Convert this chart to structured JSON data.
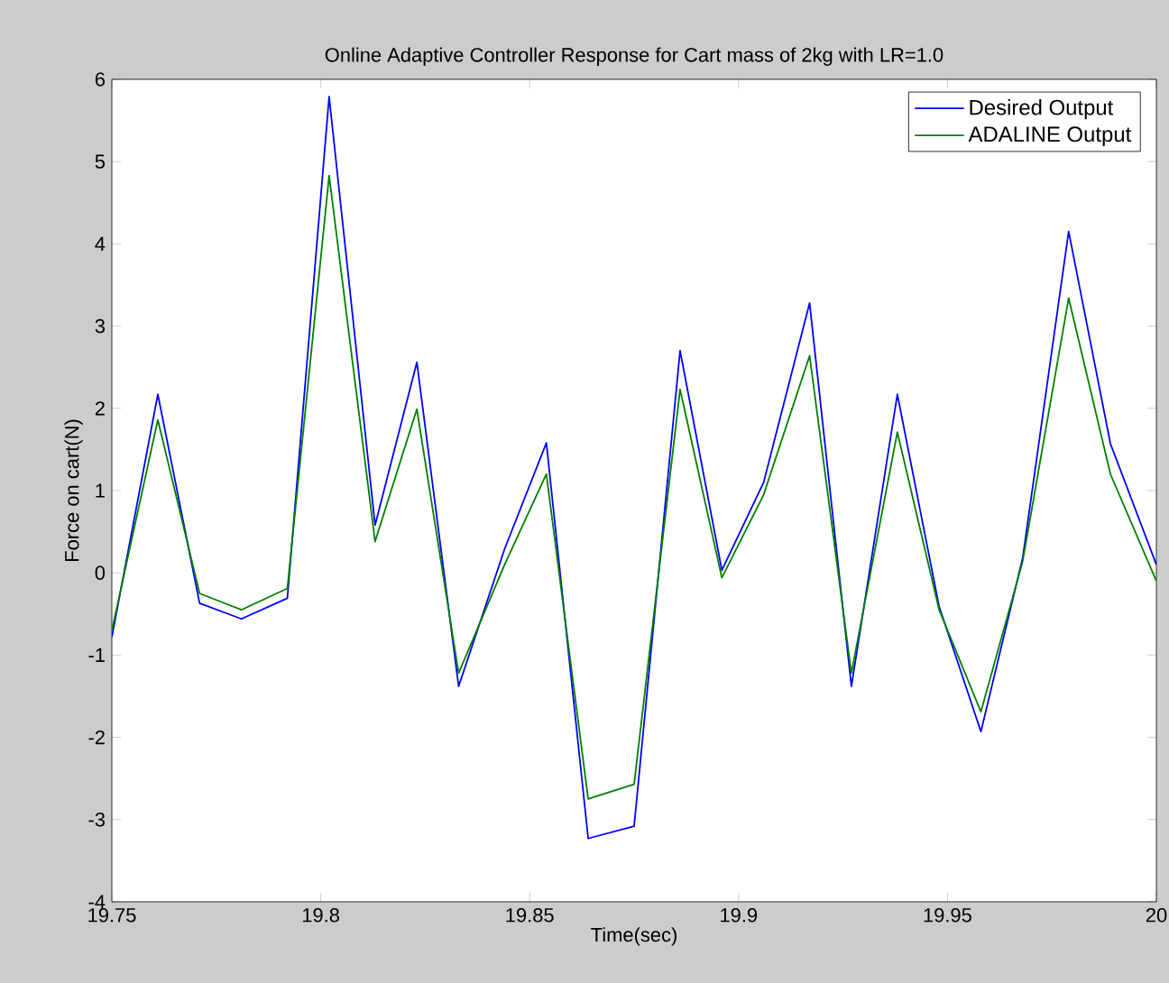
{
  "chart_data": {
    "type": "line",
    "title": "Online Adaptive Controller Response for Cart mass of 2kg with LR=1.0",
    "xlabel": "Time(sec)",
    "ylabel": "Force on cart(N)",
    "x": [
      19.75,
      19.761,
      19.771,
      19.781,
      19.792,
      19.802,
      19.813,
      19.823,
      19.833,
      19.844,
      19.854,
      19.864,
      19.875,
      19.886,
      19.896,
      19.906,
      19.917,
      19.927,
      19.938,
      19.948,
      19.958,
      19.968,
      19.979,
      19.989,
      20.0
    ],
    "series": [
      {
        "name": "Desired Output",
        "color": "#0000ff",
        "values": [
          -0.78,
          2.17,
          -0.37,
          -0.56,
          -0.31,
          5.79,
          0.58,
          2.56,
          -1.38,
          0.29,
          1.58,
          -3.23,
          -3.08,
          2.7,
          0.03,
          1.1,
          3.28,
          -1.38,
          2.17,
          -0.41,
          -1.93,
          0.18,
          4.15,
          1.57,
          0.1
        ]
      },
      {
        "name": "ADALINE Output",
        "color": "#008000",
        "values": [
          -0.7,
          1.86,
          -0.25,
          -0.45,
          -0.19,
          4.83,
          0.38,
          1.99,
          -1.22,
          0.1,
          1.2,
          -2.75,
          -2.57,
          2.23,
          -0.06,
          0.95,
          2.64,
          -1.22,
          1.71,
          -0.45,
          -1.69,
          0.14,
          3.34,
          1.2,
          -0.1
        ]
      }
    ],
    "xlim": [
      19.75,
      20
    ],
    "xticks": [
      19.75,
      19.8,
      19.85,
      19.9,
      19.95,
      20
    ],
    "ylim": [
      -4,
      6
    ],
    "yticks": [
      -4,
      -3,
      -2,
      -1,
      0,
      1,
      2,
      3,
      4,
      5,
      6
    ],
    "grid": false,
    "legend": "top right",
    "marker": "none",
    "line_style": "solid"
  }
}
